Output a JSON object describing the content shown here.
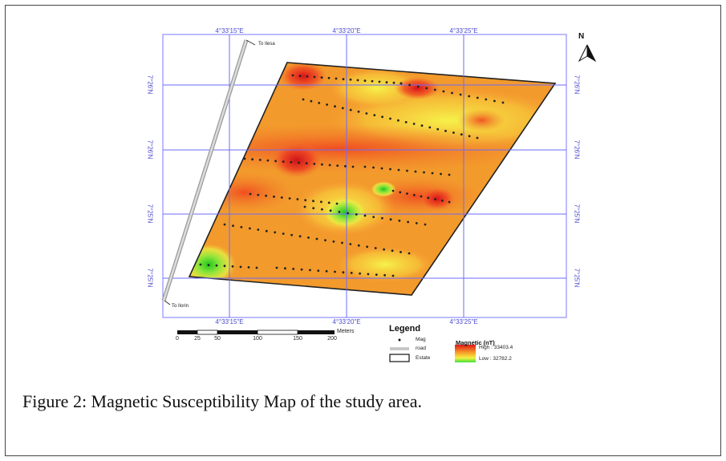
{
  "map": {
    "top_ticks": [
      "4°33'15\"E",
      "4°33'20\"E",
      "4°33'25\"E"
    ],
    "bottom_ticks": [
      "4°33'15\"E",
      "4°33'20\"E",
      "4°33'25\"E"
    ],
    "left_ticks": [
      "7°26'N",
      "7°26'N",
      "7°25'N",
      "7°25'N"
    ],
    "right_ticks": [
      "7°26'N",
      "7°26'N",
      "7°25'N",
      "7°25'N"
    ],
    "road_label_top": "To Ilesa",
    "road_label_bottom": "To Ilorin",
    "north_label": "N",
    "gridline_color": "#6b6bff",
    "surface_colors": {
      "high": "#e8201a",
      "mid": "#f79a2a",
      "low": "#3ee03a"
    }
  },
  "scale_bar": {
    "labels": [
      "0",
      "25",
      "50",
      "100",
      "150",
      "200"
    ],
    "units": "Meters"
  },
  "legend": {
    "title": "Legend",
    "items": [
      {
        "symbol": "point",
        "label": "Mag"
      },
      {
        "symbol": "line",
        "label": "road"
      },
      {
        "symbol": "box",
        "label": "Estate"
      }
    ],
    "magnetic_title": "Magnetic (nT)",
    "high_label": "High : 33403.4",
    "low_label": "Low : 32782.2"
  },
  "caption": "Figure 2: Magnetic Susceptibility Map of the study area."
}
